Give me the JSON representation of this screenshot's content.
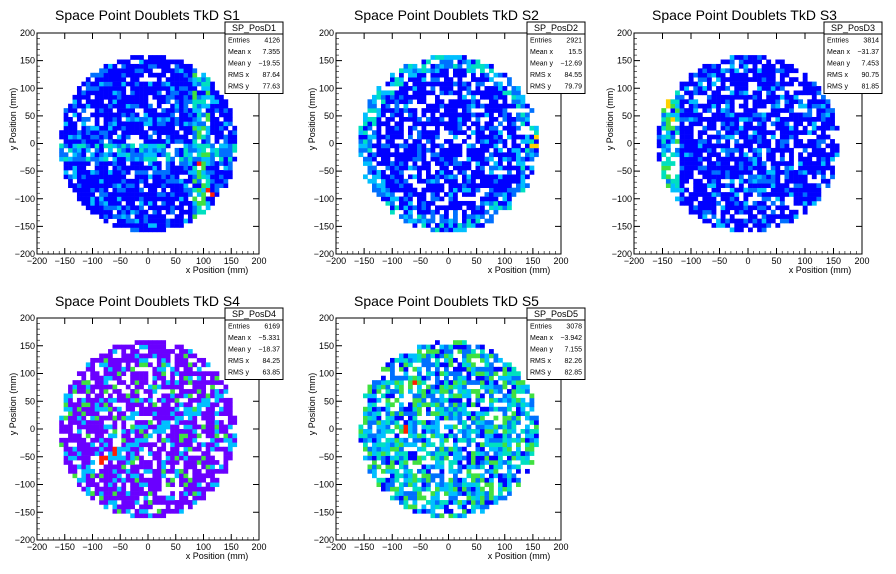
{
  "chart_data": [
    {
      "type": "heatmap",
      "title": "Space Point Doublets TkD S1",
      "xlabel": "x Position (mm)",
      "ylabel": "y Position (mm)",
      "xlim": [
        -200,
        200
      ],
      "ylim": [
        -200,
        200
      ],
      "xticks": [
        -200,
        -150,
        -100,
        -50,
        0,
        50,
        100,
        150,
        200
      ],
      "yticks": [
        -200,
        -150,
        -100,
        -50,
        0,
        50,
        100,
        150,
        200
      ],
      "stats": {
        "name": "SP_PosD1",
        "rows": [
          [
            "Entries",
            "4126"
          ],
          [
            "Mean x",
            "7.355"
          ],
          [
            "Mean y",
            "−19.55"
          ],
          [
            "RMS x",
            "87.64"
          ],
          [
            "RMS y",
            "77.63"
          ]
        ]
      },
      "disk_radius_mm": 160,
      "palette": [
        "#0000ff",
        "#0070ff",
        "#00bfff",
        "#00e0c0",
        "#40e040",
        "#ffd000",
        "#ff2000"
      ],
      "base_color": "#0000ff",
      "empty_fraction": 0.12,
      "features": [
        {
          "kind": "vertical-band",
          "x": 95,
          "width": 30,
          "level": 4
        },
        {
          "kind": "horizontal-band",
          "y": -15,
          "width": 30,
          "level": 3
        },
        {
          "kind": "hot-spots",
          "points": [
            [
              100,
              20
            ],
            [
              90,
              -40
            ],
            [
              110,
              -90
            ]
          ],
          "level": 6
        }
      ]
    },
    {
      "type": "heatmap",
      "title": "Space Point Doublets TkD S2",
      "xlabel": "x Position (mm)",
      "ylabel": "y Position (mm)",
      "xlim": [
        -200,
        200
      ],
      "ylim": [
        -200,
        200
      ],
      "xticks": [
        -200,
        -150,
        -100,
        -50,
        0,
        50,
        100,
        150,
        200
      ],
      "yticks": [
        -200,
        -150,
        -100,
        -50,
        0,
        50,
        100,
        150,
        200
      ],
      "stats": {
        "name": "SP_PosD2",
        "rows": [
          [
            "Entries",
            "2921"
          ],
          [
            "Mean x",
            "15.5"
          ],
          [
            "Mean y",
            "−12.69"
          ],
          [
            "RMS x",
            "84.55"
          ],
          [
            "RMS y",
            "79.79"
          ]
        ]
      },
      "disk_radius_mm": 160,
      "palette": [
        "#0000ff",
        "#0070ff",
        "#00bfff",
        "#00e0c0",
        "#40e040",
        "#ffd000",
        "#ff2000"
      ],
      "base_color": "#0000ff",
      "empty_fraction": 0.25,
      "features": [
        {
          "kind": "edge-ring",
          "level": 2
        },
        {
          "kind": "hot-spots",
          "points": [
            [
              160,
              10
            ],
            [
              150,
              -5
            ]
          ],
          "level": 5
        }
      ]
    },
    {
      "type": "heatmap",
      "title": "Space Point Doublets TkD S3",
      "xlabel": "x Position (mm)",
      "ylabel": "y Position (mm)",
      "xlim": [
        -200,
        200
      ],
      "ylim": [
        -200,
        200
      ],
      "xticks": [
        -200,
        -150,
        -100,
        -50,
        0,
        50,
        100,
        150,
        200
      ],
      "yticks": [
        -200,
        -150,
        -100,
        -50,
        0,
        50,
        100,
        150,
        200
      ],
      "stats": {
        "name": "SP_PosD3",
        "rows": [
          [
            "Entries",
            "3814"
          ],
          [
            "Mean x",
            "−31.37"
          ],
          [
            "Mean y",
            "7.453"
          ],
          [
            "RMS x",
            "90.75"
          ],
          [
            "RMS y",
            "81.85"
          ]
        ]
      },
      "disk_radius_mm": 160,
      "palette": [
        "#0000ff",
        "#0070ff",
        "#00bfff",
        "#00e0c0",
        "#40e040",
        "#ffd000",
        "#ff2000"
      ],
      "base_color": "#0000ff",
      "empty_fraction": 0.2,
      "features": [
        {
          "kind": "vertical-band",
          "x": -135,
          "width": 35,
          "level": 4
        },
        {
          "kind": "hot-spots",
          "points": [
            [
              -140,
              70
            ],
            [
              -130,
              40
            ]
          ],
          "level": 5
        }
      ]
    },
    {
      "type": "heatmap",
      "title": "Space Point Doublets TkD S4",
      "xlabel": "x Position (mm)",
      "ylabel": "y Position (mm)",
      "xlim": [
        -200,
        200
      ],
      "ylim": [
        -200,
        200
      ],
      "xticks": [
        -200,
        -150,
        -100,
        -50,
        0,
        50,
        100,
        150,
        200
      ],
      "yticks": [
        -200,
        -150,
        -100,
        -50,
        0,
        50,
        100,
        150,
        200
      ],
      "stats": {
        "name": "SP_PosD4",
        "rows": [
          [
            "Entries",
            "6169"
          ],
          [
            "Mean x",
            "−5.331"
          ],
          [
            "Mean y",
            "−18.37"
          ],
          [
            "RMS x",
            "84.25"
          ],
          [
            "RMS y",
            "63.85"
          ]
        ]
      },
      "disk_radius_mm": 160,
      "palette": [
        "#6a00ff",
        "#00bfff",
        "#40e040",
        "#ff2000"
      ],
      "base_color": "#6a00ff",
      "empty_fraction": 0.22,
      "features": [
        {
          "kind": "diagonal-line",
          "from": [
            -130,
            -85
          ],
          "to": [
            150,
            70
          ],
          "level": 1
        },
        {
          "kind": "hot-spots",
          "points": [
            [
              -80,
              -55
            ],
            [
              -60,
              -40
            ]
          ],
          "level": 3
        }
      ]
    },
    {
      "type": "heatmap",
      "title": "Space Point Doublets TkD S5",
      "xlabel": "x Position (mm)",
      "ylabel": "y Position (mm)",
      "xlim": [
        -200,
        200
      ],
      "ylim": [
        -200,
        200
      ],
      "xticks": [
        -200,
        -150,
        -100,
        -50,
        0,
        50,
        100,
        150,
        200
      ],
      "yticks": [
        -200,
        -150,
        -100,
        -50,
        0,
        50,
        100,
        150,
        200
      ],
      "stats": {
        "name": "SP_PosD5",
        "rows": [
          [
            "Entries",
            "3078"
          ],
          [
            "Mean x",
            "−3.942"
          ],
          [
            "Mean y",
            "7.155"
          ],
          [
            "RMS x",
            "82.26"
          ],
          [
            "RMS y",
            "82.85"
          ]
        ]
      },
      "disk_radius_mm": 160,
      "palette": [
        "#0000ff",
        "#0070ff",
        "#00bfff",
        "#00e0c0",
        "#40e040",
        "#ffd000",
        "#ff2000"
      ],
      "base_color": "#0000ff",
      "empty_fraction": 0.25,
      "features": [
        {
          "kind": "speckle",
          "level": 4
        },
        {
          "kind": "hot-spots",
          "points": [
            [
              -75,
              0
            ],
            [
              -45,
              100
            ],
            [
              -60,
              80
            ]
          ],
          "level": 6
        }
      ]
    }
  ]
}
